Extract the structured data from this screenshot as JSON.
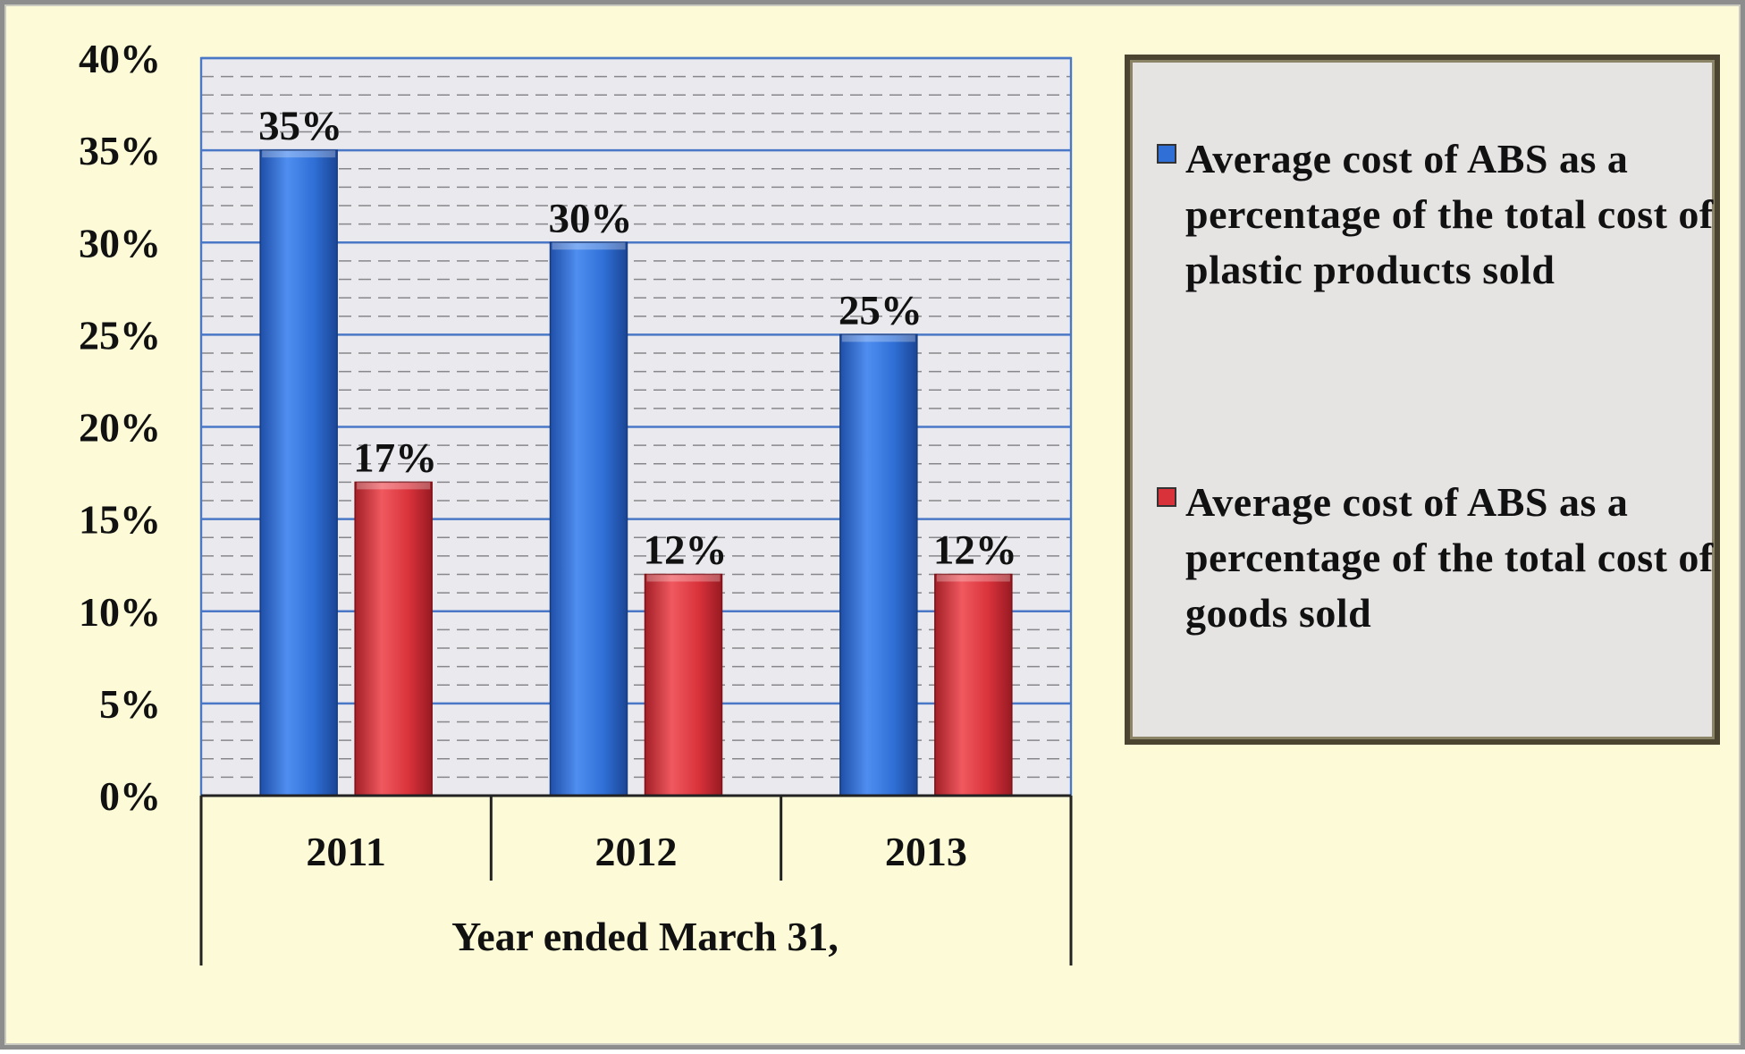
{
  "chart_data": {
    "type": "bar",
    "categories": [
      "2011",
      "2012",
      "2013"
    ],
    "series": [
      {
        "name": "Average cost of ABS as a percentage of the total cost of plastic products sold",
        "values": [
          35,
          30,
          25
        ],
        "data_labels": [
          "35%",
          "30%",
          "25%"
        ]
      },
      {
        "name": "Average cost of ABS as a percentage of the total cost of goods sold",
        "values": [
          17,
          12,
          12
        ],
        "data_labels": [
          "17%",
          "12%",
          "12%"
        ]
      }
    ],
    "xlabel": "Year ended March 31,",
    "ylabel": "",
    "ylim": [
      0,
      40
    ],
    "yticks": [
      0,
      5,
      10,
      15,
      20,
      25,
      30,
      35,
      40
    ],
    "ytick_labels": [
      "0%",
      "5%",
      "10%",
      "15%",
      "20%",
      "25%",
      "30%",
      "35%",
      "40%"
    ],
    "grid": true,
    "legend_position": "right",
    "colors": {
      "series_1": "#2f6fd6",
      "series_2": "#d9323b",
      "plot_background": "#e9e9ee",
      "page_background": "#fdfbd7"
    }
  }
}
